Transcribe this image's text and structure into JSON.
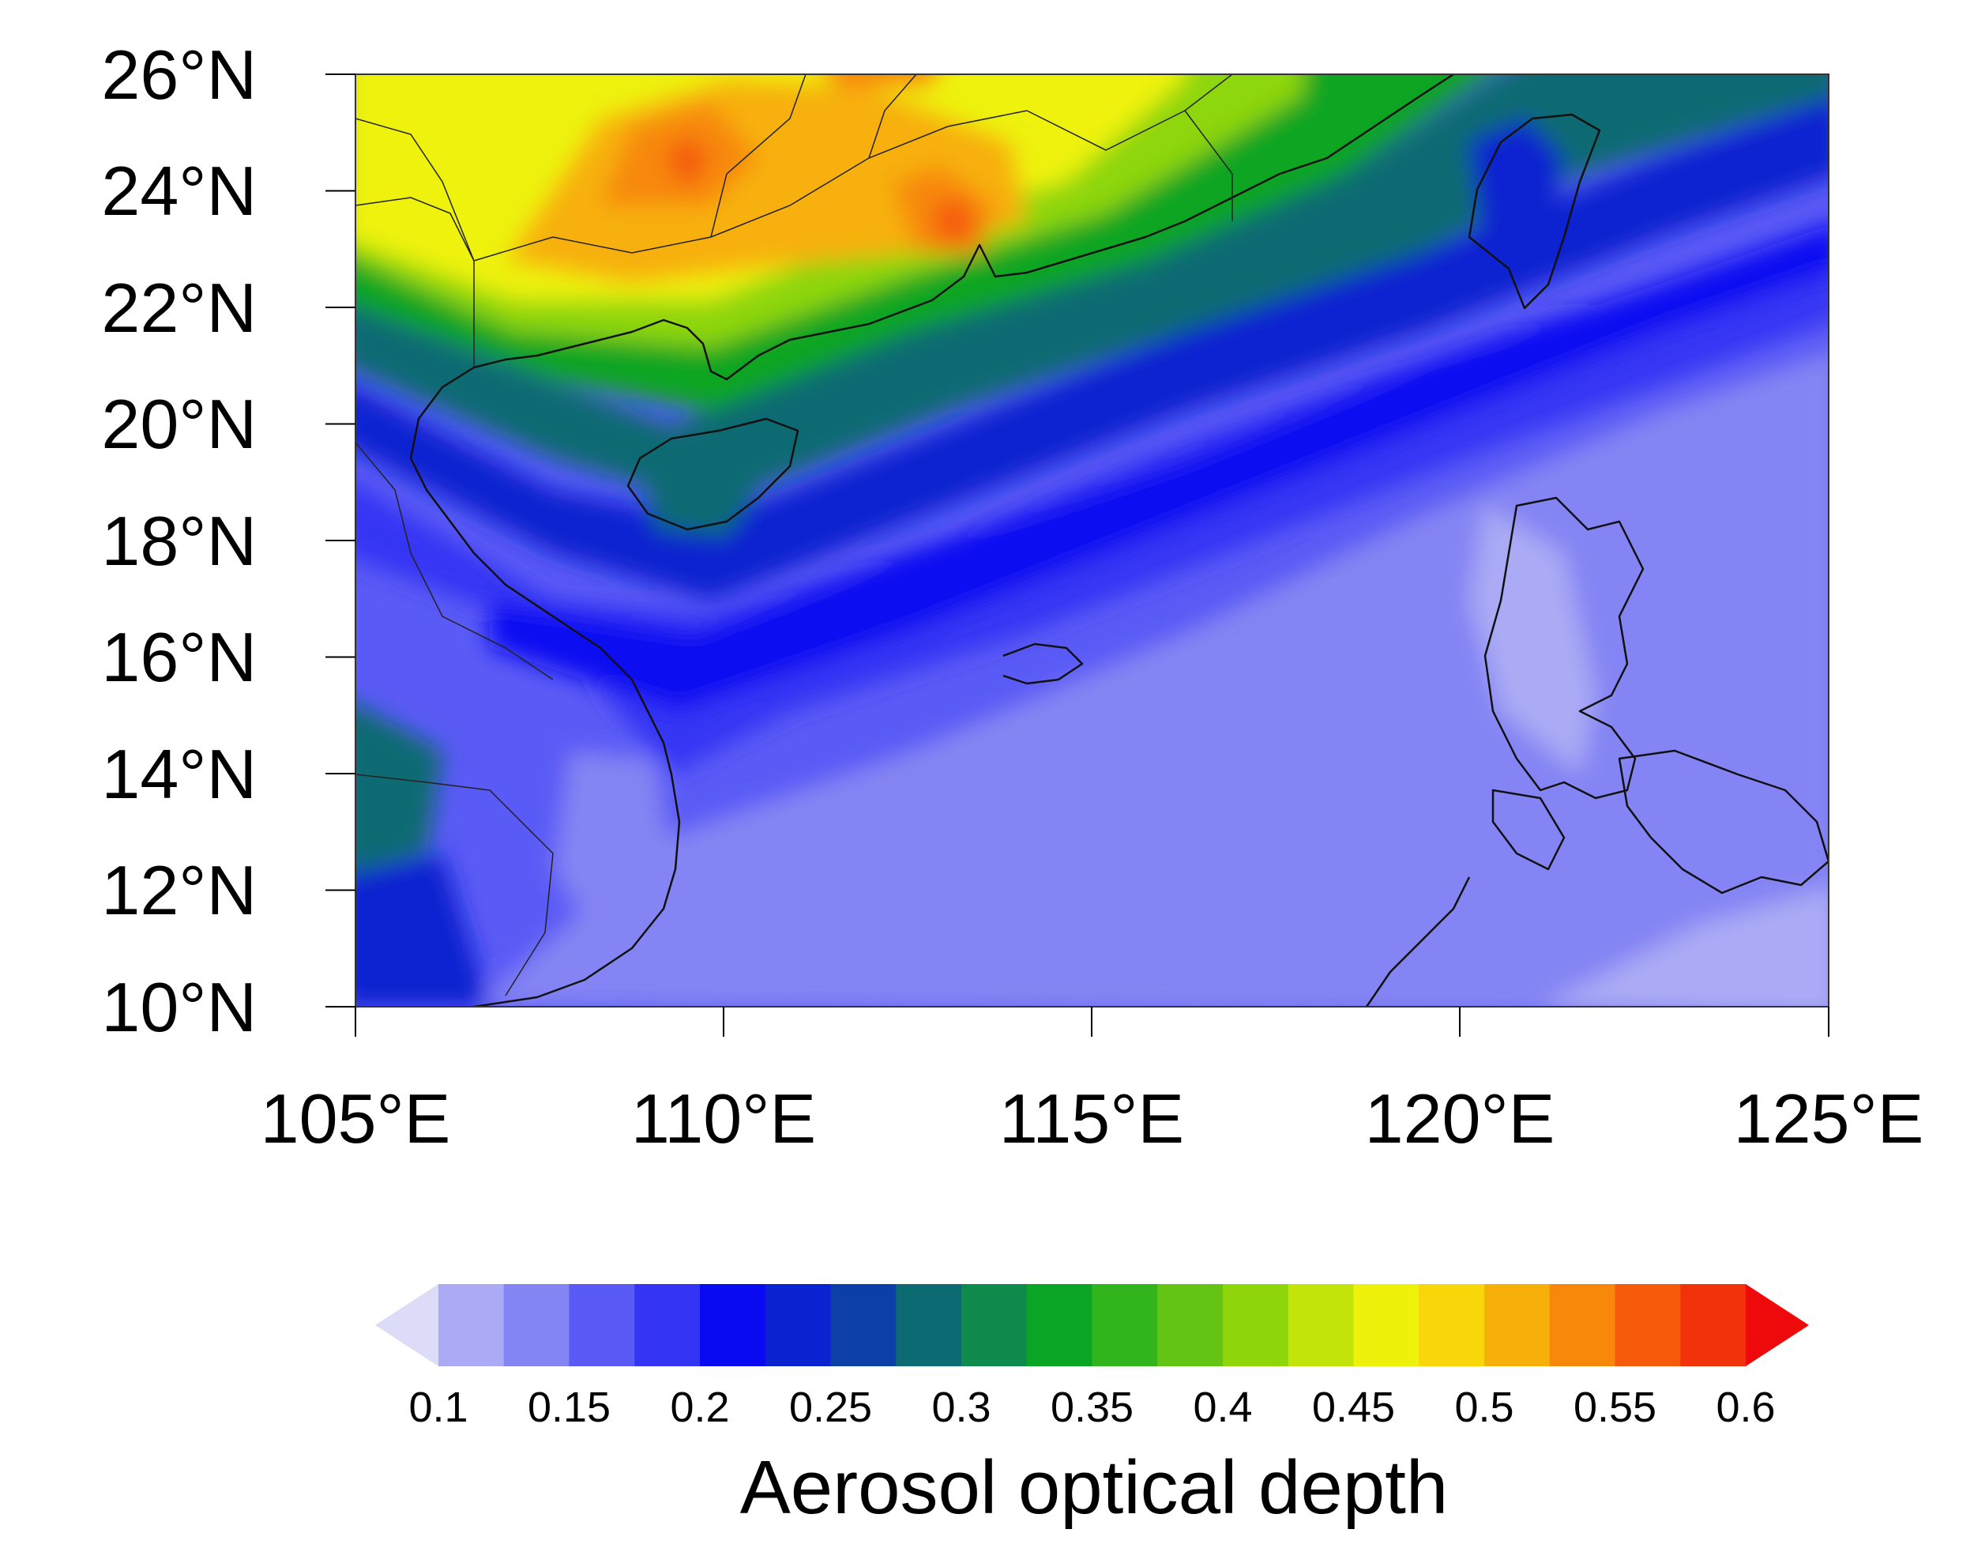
{
  "map": {
    "lat_labels": [
      "26°N",
      "24°N",
      "22°N",
      "20°N",
      "18°N",
      "16°N",
      "14°N",
      "12°N",
      "10°N"
    ],
    "lon_labels": [
      "105°E",
      "110°E",
      "115°E",
      "120°E",
      "125°E"
    ],
    "extent": {
      "lon": [
        105,
        125
      ],
      "lat": [
        10,
        26
      ]
    },
    "variable_label": "Aerosol optical depth"
  },
  "colorbar": {
    "tick_labels": [
      "0.1",
      "0.15",
      "0.2",
      "0.25",
      "0.3",
      "0.35",
      "0.4",
      "0.45",
      "0.5",
      "0.55",
      "0.6"
    ],
    "colors": [
      "#dcdcf8",
      "#aaaaf5",
      "#8484f4",
      "#5a5af6",
      "#3434f4",
      "#0a0af2",
      "#0a22d0",
      "#0d3fa8",
      "#0b6a72",
      "#0e8a4c",
      "#0aa524",
      "#32b41c",
      "#64c414",
      "#8ed60a",
      "#c2e40a",
      "#eef20a",
      "#f8d60a",
      "#f7b00a",
      "#f7880a",
      "#f65a0a",
      "#f2320a",
      "#ee0a0a"
    ]
  }
}
